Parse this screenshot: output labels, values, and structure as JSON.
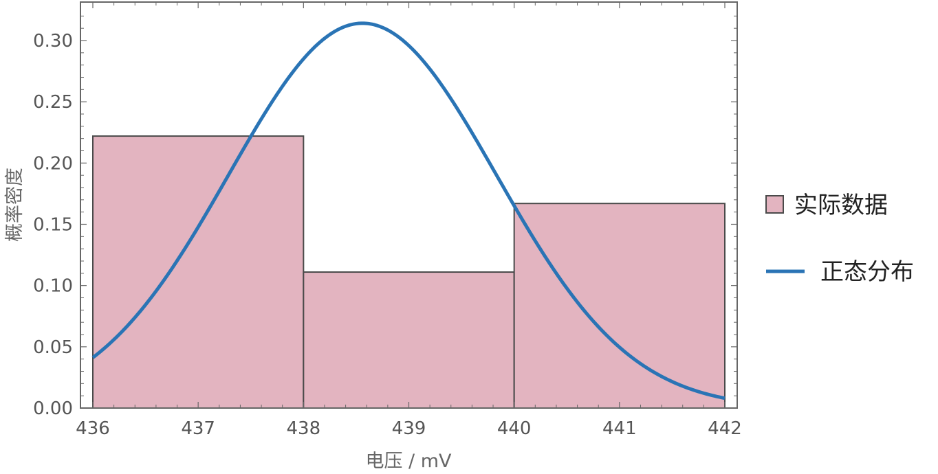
{
  "chart_data": {
    "type": "bar",
    "xlabel": "电压 / mV",
    "ylabel": "概率密度",
    "xlim": [
      436,
      442
    ],
    "ylim": [
      0,
      0.33
    ],
    "x_ticks": [
      436,
      437,
      438,
      439,
      440,
      441,
      442
    ],
    "x_tick_labels": [
      "436",
      "437",
      "438",
      "439",
      "440",
      "441",
      "442"
    ],
    "y_ticks": [
      0,
      0.05,
      0.1,
      0.15,
      0.2,
      0.25,
      0.3
    ],
    "y_tick_labels": [
      "0.00",
      "0.05",
      "0.10",
      "0.15",
      "0.20",
      "0.25",
      "0.30"
    ],
    "grid": false,
    "legend_position": "right",
    "series": [
      {
        "name": "实际数据",
        "type": "histogram",
        "color": "#e3b4c0",
        "edge_color": "#4a4a4a",
        "bins": [
          {
            "x0": 436,
            "x1": 438,
            "value": 0.222
          },
          {
            "x0": 438,
            "x1": 440,
            "value": 0.111
          },
          {
            "x0": 440,
            "x1": 442,
            "value": 0.167
          }
        ]
      },
      {
        "name": "正态分布",
        "type": "line",
        "color": "#2a74b5",
        "distribution": {
          "mean": 438.56,
          "sd": 1.27
        },
        "x_range": [
          436,
          442
        ]
      }
    ]
  }
}
